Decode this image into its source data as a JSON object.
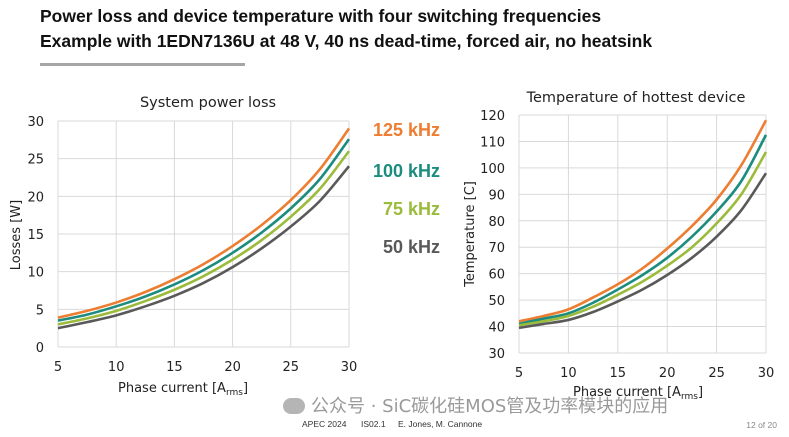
{
  "header": {
    "title_line1": "Power loss and device temperature with four switching frequencies",
    "title_line2": "Example with 1EDN7136U at 48 V, 40 ns dead-time, forced air, no heatsink"
  },
  "colors": {
    "f125": "#ed7d31",
    "f100": "#1b8c7e",
    "f75": "#9bbb3b",
    "f50": "#595959",
    "grid": "#d9d9d9"
  },
  "chart_data": [
    {
      "type": "line",
      "title": "System power loss",
      "xlabel": "Phase current [A",
      "xlabel_sub": "rms",
      "xlabel_end": "]",
      "ylabel": "Losses [W]",
      "xlim": [
        5,
        30
      ],
      "ylim": [
        0,
        30
      ],
      "xticks": [
        5,
        10,
        15,
        20,
        25,
        30
      ],
      "yticks": [
        0,
        5,
        10,
        15,
        20,
        25,
        30
      ],
      "grid": true,
      "x": [
        5,
        7.5,
        10,
        12.5,
        15,
        17.5,
        20,
        22.5,
        25,
        27.5,
        30
      ],
      "series": [
        {
          "name": "125 kHz",
          "values": [
            3.9,
            4.8,
            5.9,
            7.3,
            9.0,
            11.0,
            13.4,
            16.2,
            19.5,
            23.6,
            29.0
          ]
        },
        {
          "name": "100 kHz",
          "values": [
            3.5,
            4.3,
            5.4,
            6.7,
            8.3,
            10.2,
            12.5,
            15.2,
            18.4,
            22.3,
            27.6
          ]
        },
        {
          "name": "75 kHz",
          "values": [
            3.0,
            3.8,
            4.8,
            6.1,
            7.6,
            9.4,
            11.6,
            14.2,
            17.3,
            21.0,
            26.0
          ]
        },
        {
          "name": "50 kHz",
          "values": [
            2.5,
            3.3,
            4.2,
            5.4,
            6.8,
            8.5,
            10.6,
            13.1,
            16.0,
            19.4,
            24.0
          ]
        }
      ]
    },
    {
      "type": "line",
      "title": "Temperature of hottest device",
      "xlabel": "Phase current [A",
      "xlabel_sub": "rms",
      "xlabel_end": "]",
      "ylabel": "Temperature  [C]",
      "xlim": [
        5,
        30
      ],
      "ylim": [
        30,
        120
      ],
      "xticks": [
        5,
        10,
        15,
        20,
        25,
        30
      ],
      "yticks": [
        30,
        40,
        50,
        60,
        70,
        80,
        90,
        100,
        110,
        120
      ],
      "grid": true,
      "x": [
        5,
        7.5,
        10,
        12.5,
        15,
        17.5,
        20,
        22.5,
        25,
        27.5,
        30
      ],
      "series": [
        {
          "name": "125 kHz",
          "values": [
            42,
            44,
            46.5,
            51,
            56,
            62,
            69.5,
            78,
            88,
            101,
            118
          ]
        },
        {
          "name": "100 kHz",
          "values": [
            41,
            43,
            45,
            49,
            54,
            59.5,
            66,
            74,
            83.5,
            95,
            112.5
          ]
        },
        {
          "name": "75 kHz",
          "values": [
            40.5,
            42,
            44,
            47.5,
            52,
            57,
            63,
            70,
            79,
            90,
            106
          ]
        },
        {
          "name": "50 kHz",
          "values": [
            39.5,
            41,
            42.5,
            45.5,
            49.5,
            54,
            59.5,
            66,
            74,
            84,
            98
          ]
        }
      ]
    }
  ],
  "legend": [
    "125 kHz",
    "100 kHz",
    "75 kHz",
    "50 kHz"
  ],
  "footer": {
    "conference": "APEC 2024",
    "session": "IS02.1",
    "authors": "E. Jones, M. Cannone",
    "page": "12 of 20"
  },
  "watermark": "公众号 · SiC碳化硅MOS管及功率模块的应用"
}
